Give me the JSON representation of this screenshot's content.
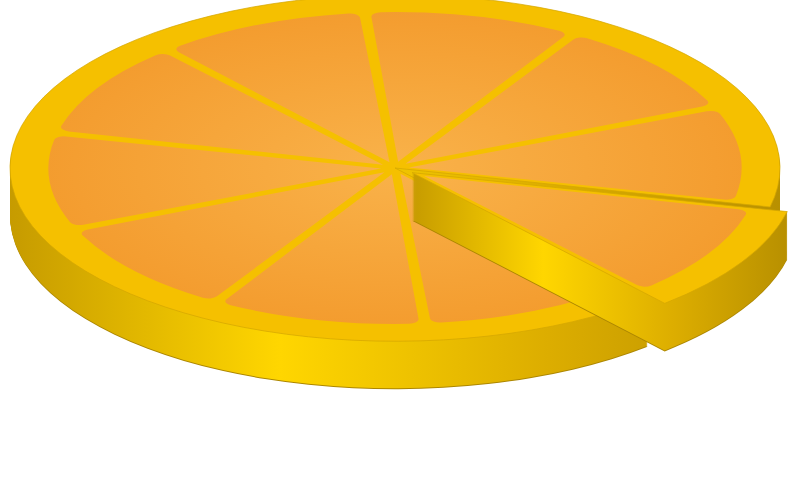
{
  "chart_data": {
    "type": "pie",
    "values": [
      90,
      10
    ],
    "color": "#f5c000"
  }
}
